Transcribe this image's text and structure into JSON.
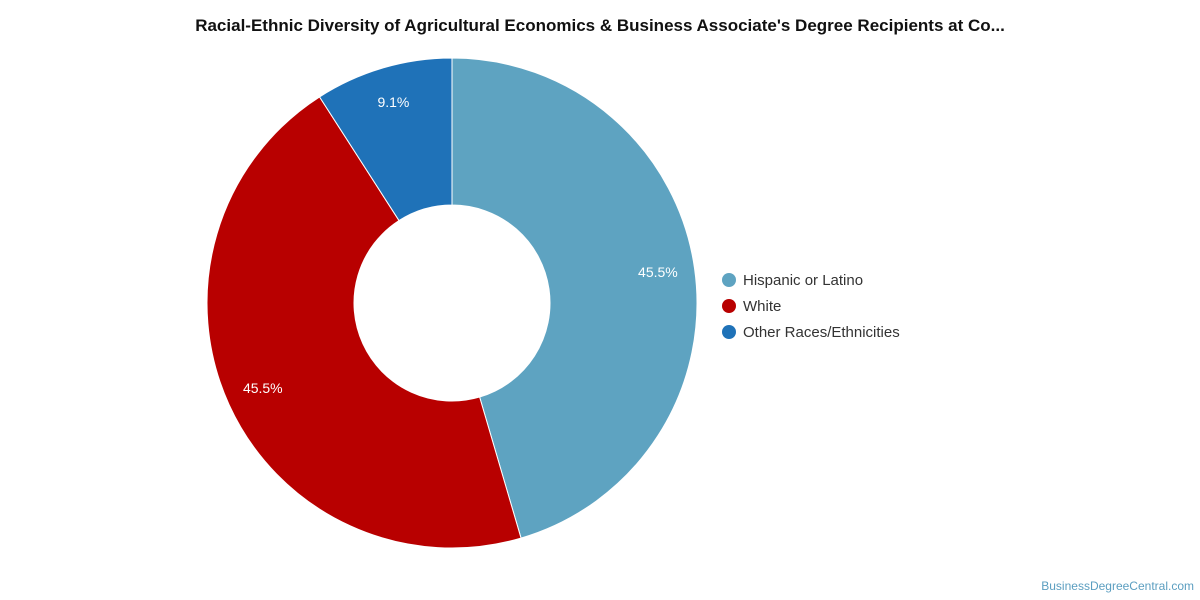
{
  "chart_data": {
    "type": "pie",
    "variant": "donut",
    "title": "Racial-Ethnic Diversity of Agricultural Economics & Business Associate's Degree Recipients at Co...",
    "slices": [
      {
        "label": "Hispanic or Latino",
        "value": 45.5,
        "display": "45.5%",
        "color": "#5ea3c1"
      },
      {
        "label": "White",
        "value": 45.5,
        "display": "45.5%",
        "color": "#b80000"
      },
      {
        "label": "Other Races/Ethnicities",
        "value": 9.1,
        "display": "9.1%",
        "color": "#1f72b8"
      }
    ],
    "legend_position": "right"
  },
  "legend": {
    "items": [
      {
        "label": "Hispanic or Latino",
        "color": "#5ea3c1"
      },
      {
        "label": "White",
        "color": "#b80000"
      },
      {
        "label": "Other Races/Ethnicities",
        "color": "#1f72b8"
      }
    ]
  },
  "footer": {
    "source": "BusinessDegreeCentral.com"
  }
}
